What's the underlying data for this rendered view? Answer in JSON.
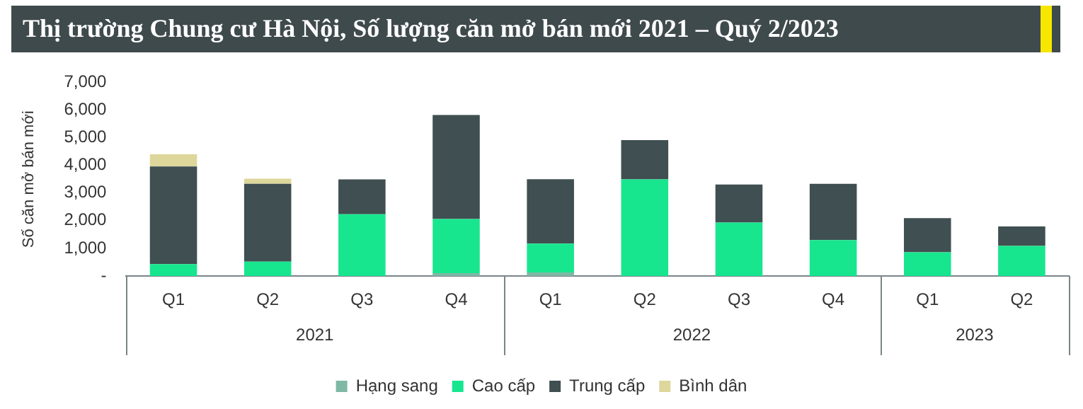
{
  "chart_data": {
    "type": "bar",
    "stacked": true,
    "title": "Thị trường Chung cư Hà Nội, Số lượng căn mở bán mới 2021 – Quý 2/2023",
    "ylabel": "Số căn mở bán mới",
    "categories": [
      "Q1",
      "Q2",
      "Q3",
      "Q4",
      "Q1",
      "Q2",
      "Q3",
      "Q4",
      "Q1",
      "Q2"
    ],
    "annotations": [
      "2021",
      "2022",
      "2023"
    ],
    "series": [
      {
        "name": "Hạng sang",
        "color": "#7fb8a4",
        "values": [
          0,
          0,
          0,
          100,
          130,
          0,
          0,
          0,
          0,
          0
        ]
      },
      {
        "name": "Cao cấp",
        "color": "#17e68f",
        "values": [
          430,
          520,
          2230,
          1960,
          1040,
          3490,
          1930,
          1300,
          860,
          1090
        ]
      },
      {
        "name": "Trung cấp",
        "color": "#404f51",
        "values": [
          3530,
          2810,
          1260,
          3760,
          2330,
          1420,
          1380,
          2030,
          1230,
          700
        ]
      },
      {
        "name": "Bình dân",
        "color": "#ddd79b",
        "values": [
          440,
          190,
          0,
          0,
          0,
          0,
          0,
          0,
          0,
          0
        ]
      }
    ],
    "ylim": [
      0,
      7000
    ],
    "yticks": [
      {
        "value": 0,
        "label": "-"
      },
      {
        "value": 1000,
        "label": "1,000"
      },
      {
        "value": 2000,
        "label": "2,000"
      },
      {
        "value": 3000,
        "label": "3,000"
      },
      {
        "value": 4000,
        "label": "4,000"
      },
      {
        "value": 5000,
        "label": "5,000"
      },
      {
        "value": 6000,
        "label": "6,000"
      },
      {
        "value": 7000,
        "label": "7,000"
      }
    ],
    "grid": false,
    "legend": "bottom"
  }
}
